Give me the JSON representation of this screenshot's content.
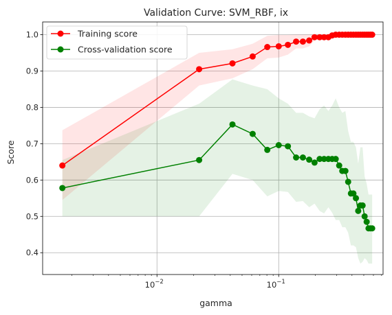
{
  "chart_data": {
    "type": "line",
    "title": "Validation Curve: SVM_RBF, ix",
    "xlabel": "gamma",
    "ylabel": "Score",
    "xscale": "log",
    "xlim": [
      0.00115,
      0.72
    ],
    "ylim": [
      0.34,
      1.035
    ],
    "yticks": [
      "0.4",
      "0.5",
      "0.6",
      "0.7",
      "0.8",
      "0.9",
      "1.0"
    ],
    "xticks": [
      {
        "value": 0.01,
        "base": "10",
        "exp": "−2"
      },
      {
        "value": 0.1,
        "base": "10",
        "exp": "−1"
      }
    ],
    "grid": true,
    "legend_position": "top-left",
    "x": [
      0.00167,
      0.0222,
      0.0417,
      0.0611,
      0.0806,
      0.1,
      0.119,
      0.139,
      0.158,
      0.178,
      0.197,
      0.217,
      0.236,
      0.256,
      0.275,
      0.294,
      0.314,
      0.333,
      0.353,
      0.372,
      0.392,
      0.411,
      0.431,
      0.45,
      0.469,
      0.489,
      0.508,
      0.528,
      0.547,
      0.567,
      0.586
    ],
    "series": [
      {
        "name": "Training score",
        "color": "#ff0000",
        "values": [
          0.64,
          0.905,
          0.921,
          0.94,
          0.966,
          0.968,
          0.972,
          0.981,
          0.981,
          0.984,
          0.993,
          0.993,
          0.993,
          0.993,
          0.998,
          1.0,
          1.0,
          1.0,
          1.0,
          1.0,
          1.0,
          1.0,
          1.0,
          1.0,
          1.0,
          1.0,
          1.0,
          1.0,
          1.0,
          1.0,
          1.0
        ],
        "band_lower": [
          0.545,
          0.86,
          0.88,
          0.905,
          0.935,
          0.937,
          0.945,
          0.962,
          0.962,
          0.968,
          0.985,
          0.985,
          0.985,
          0.985,
          0.995,
          1.0,
          1.0,
          1.0,
          1.0,
          1.0,
          1.0,
          1.0,
          1.0,
          1.0,
          1.0,
          1.0,
          1.0,
          1.0,
          1.0,
          1.0,
          1.0
        ],
        "band_upper": [
          0.737,
          0.95,
          0.96,
          0.975,
          0.997,
          0.999,
          0.999,
          1.0,
          1.0,
          1.0,
          1.0,
          1.0,
          1.0,
          1.0,
          1.0,
          1.0,
          1.0,
          1.0,
          1.0,
          1.0,
          1.0,
          1.0,
          1.0,
          1.0,
          1.0,
          1.0,
          1.0,
          1.0,
          1.0,
          1.0,
          1.0
        ]
      },
      {
        "name": "Cross-validation score",
        "color": "#008000",
        "values": [
          0.578,
          0.655,
          0.753,
          0.727,
          0.683,
          0.696,
          0.693,
          0.662,
          0.662,
          0.656,
          0.648,
          0.658,
          0.658,
          0.658,
          0.658,
          0.658,
          0.64,
          0.625,
          0.625,
          0.595,
          0.563,
          0.563,
          0.55,
          0.515,
          0.53,
          0.53,
          0.5,
          0.485,
          0.467,
          0.467,
          0.467
        ],
        "band_lower": [
          0.5,
          0.5,
          0.617,
          0.6,
          0.555,
          0.57,
          0.567,
          0.54,
          0.542,
          0.525,
          0.535,
          0.515,
          0.508,
          0.525,
          0.51,
          0.49,
          0.49,
          0.47,
          0.47,
          0.455,
          0.42,
          0.42,
          0.415,
          0.385,
          0.37,
          0.375,
          0.385,
          0.38,
          0.37,
          0.37,
          0.37
        ],
        "band_upper": [
          0.655,
          0.81,
          0.877,
          0.86,
          0.85,
          0.825,
          0.81,
          0.785,
          0.785,
          0.775,
          0.77,
          0.795,
          0.805,
          0.79,
          0.805,
          0.825,
          0.8,
          0.785,
          0.79,
          0.735,
          0.705,
          0.705,
          0.69,
          0.645,
          0.69,
          0.69,
          0.61,
          0.59,
          0.56,
          0.56,
          0.56
        ]
      }
    ]
  }
}
